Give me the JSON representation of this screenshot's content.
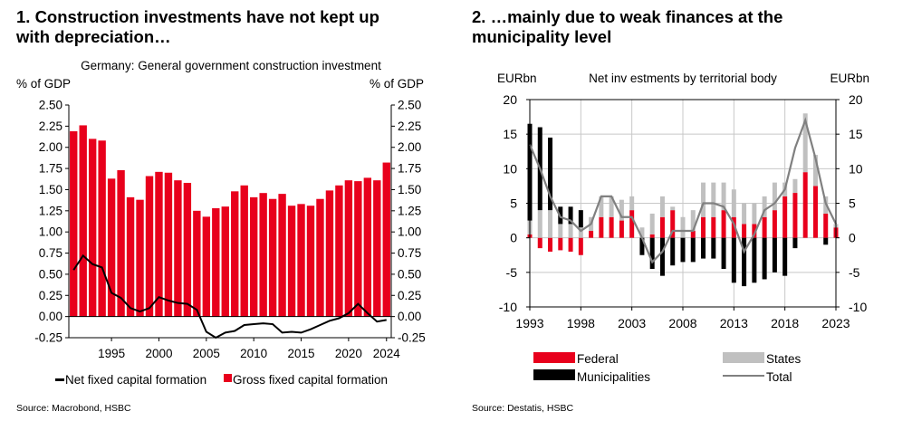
{
  "left_panel": {
    "title_line1": "1. Construction investments have not kept up",
    "title_line2": "with depreciation…",
    "source": "Source: Macrobond, HSBC"
  },
  "right_panel": {
    "title_line1": "2. …mainly due to weak finances at the",
    "title_line2": "municipality level",
    "source": "Source: Destatis, HSBC"
  },
  "chart_data": [
    {
      "type": "bar",
      "title": "Germany: General government construction investment",
      "ylabel_left": "% of GDP",
      "ylabel_right": "% of GDP",
      "ylim": [
        -0.25,
        2.5
      ],
      "yticks": [
        "2.50",
        "2.25",
        "2.00",
        "1.75",
        "1.50",
        "1.25",
        "1.00",
        "0.75",
        "0.50",
        "0.25",
        "0.00",
        "-0.25"
      ],
      "xticks": [
        "1995",
        "2000",
        "2005",
        "2010",
        "2015",
        "2020",
        "2024"
      ],
      "x": [
        1991,
        1992,
        1993,
        1994,
        1995,
        1996,
        1997,
        1998,
        1999,
        2000,
        2001,
        2002,
        2003,
        2004,
        2005,
        2006,
        2007,
        2008,
        2009,
        2010,
        2011,
        2012,
        2013,
        2014,
        2015,
        2016,
        2017,
        2018,
        2019,
        2020,
        2021,
        2022,
        2023,
        2024
      ],
      "grid": false,
      "legend_position": "bottom",
      "colors": {
        "gross": "#e8001c",
        "net": "#000000"
      },
      "series": [
        {
          "name": "Net fixed capital formation",
          "kind": "line",
          "values": [
            0.55,
            0.72,
            0.62,
            0.58,
            0.28,
            0.22,
            0.1,
            0.06,
            0.1,
            0.23,
            0.19,
            0.16,
            0.15,
            0.08,
            -0.18,
            -0.25,
            -0.19,
            -0.17,
            -0.1,
            -0.09,
            -0.08,
            -0.09,
            -0.19,
            -0.18,
            -0.19,
            -0.15,
            -0.1,
            -0.05,
            -0.02,
            0.04,
            0.15,
            0.04,
            -0.06,
            -0.04
          ]
        },
        {
          "name": "Gross fixed capital formation",
          "kind": "bar",
          "values": [
            2.19,
            2.26,
            2.1,
            2.08,
            1.63,
            1.73,
            1.41,
            1.38,
            1.66,
            1.71,
            1.7,
            1.61,
            1.58,
            1.25,
            1.18,
            1.28,
            1.3,
            1.48,
            1.55,
            1.41,
            1.46,
            1.39,
            1.45,
            1.31,
            1.33,
            1.31,
            1.39,
            1.49,
            1.55,
            1.61,
            1.6,
            1.64,
            1.61,
            1.82
          ]
        }
      ]
    },
    {
      "type": "bar",
      "title": "Net inv estments by territorial body",
      "ylabel_left": "EURbn",
      "ylabel_right": "EURbn",
      "ylim": [
        -10,
        20
      ],
      "yticks": [
        "20",
        "15",
        "10",
        "5",
        "0",
        "-5",
        "-10"
      ],
      "xticks": [
        "1993",
        "1998",
        "2003",
        "2008",
        "2013",
        "2018",
        "2023"
      ],
      "x": [
        1993,
        1994,
        1995,
        1996,
        1997,
        1998,
        1999,
        2000,
        2001,
        2002,
        2003,
        2004,
        2005,
        2006,
        2007,
        2008,
        2009,
        2010,
        2011,
        2012,
        2013,
        2014,
        2015,
        2016,
        2017,
        2018,
        2019,
        2020,
        2021,
        2022,
        2023
      ],
      "grid": true,
      "legend_position": "bottom",
      "colors": {
        "federal": "#e8001c",
        "states": "#c0c0c0",
        "municipalities": "#000000",
        "total": "#808080"
      },
      "series": [
        {
          "name": "Federal",
          "kind": "bar",
          "values": [
            0.5,
            -1.5,
            -2,
            -1.8,
            -2,
            -2.5,
            1,
            3,
            3,
            2.5,
            4,
            0,
            0.5,
            3,
            4,
            0,
            1,
            3,
            3,
            4,
            3,
            2,
            2,
            3,
            4,
            6,
            6.5,
            9.5,
            7.5,
            3.5,
            1.5
          ]
        },
        {
          "name": "States",
          "kind": "bar",
          "values": [
            2,
            4,
            4,
            2,
            2,
            1.5,
            2,
            3,
            3,
            3,
            2,
            1.5,
            3,
            3,
            0.5,
            3,
            3,
            5,
            5,
            4,
            4,
            3,
            3,
            3,
            4,
            2,
            2,
            8.5,
            4.5,
            2.5,
            0.5
          ]
        },
        {
          "name": "Municipalities",
          "kind": "bar",
          "values": [
            14,
            12,
            10.5,
            2.5,
            2.5,
            2.5,
            0,
            0,
            0,
            0,
            0,
            -2.5,
            -4.5,
            -5.5,
            -4,
            -3.5,
            -3.5,
            -3,
            -3,
            -4.5,
            -6.5,
            -7,
            -6.5,
            -6,
            -5,
            -5.5,
            -1.5,
            0,
            0,
            -1,
            0
          ]
        },
        {
          "name": "Total",
          "kind": "line",
          "values": [
            13.5,
            10,
            6,
            3,
            2.5,
            1,
            2,
            6,
            6,
            3,
            3,
            0,
            -3.5,
            -2,
            1,
            1,
            1,
            5,
            5,
            4.5,
            2,
            -2,
            0.5,
            4,
            5,
            7,
            13,
            17,
            11.5,
            5,
            2
          ]
        }
      ]
    }
  ]
}
